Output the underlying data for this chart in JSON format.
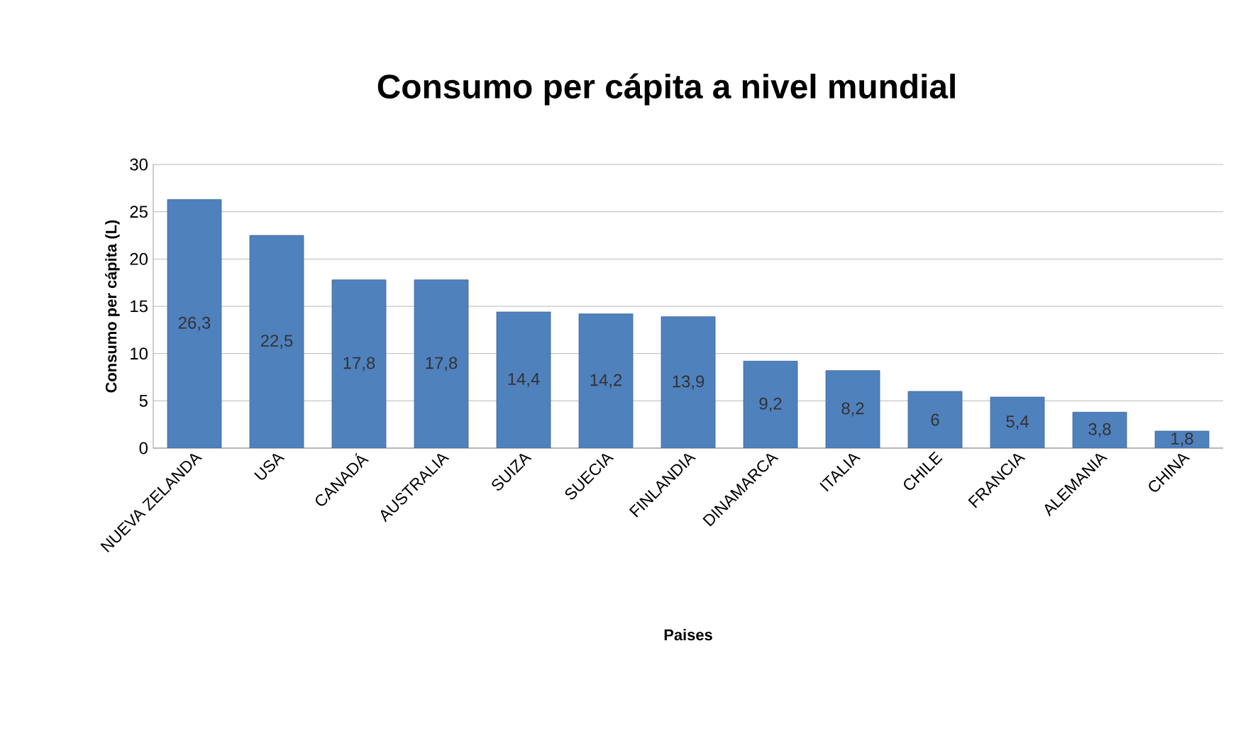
{
  "chart_data": {
    "type": "bar",
    "title": "Consumo per cápita a nivel mundial",
    "xlabel": "Paises",
    "ylabel": "Consumo per cápita (L)",
    "categories": [
      "NUEVA ZELANDA",
      "USA",
      "CANADÁ",
      "AUSTRALIA",
      "SUIZA",
      "SUECIA",
      "FINLANDIA",
      "DINAMARCA",
      "ITALIA",
      "CHILE",
      "FRANCIA",
      "ALEMANIA",
      "CHINA"
    ],
    "values": [
      26.3,
      22.5,
      17.8,
      17.8,
      14.4,
      14.2,
      13.9,
      9.2,
      8.2,
      6,
      5.4,
      3.8,
      1.8
    ],
    "value_labels": [
      "26,3",
      "22,5",
      "17,8",
      "17,8",
      "14,4",
      "14,2",
      "13,9",
      "9,2",
      "8,2",
      "6",
      "5,4",
      "3,8",
      "1,8"
    ],
    "color": "#4f81bd",
    "ylim": [
      0,
      30
    ],
    "yticks": [
      0,
      5,
      10,
      15,
      20,
      25,
      30
    ],
    "grid": "y"
  }
}
